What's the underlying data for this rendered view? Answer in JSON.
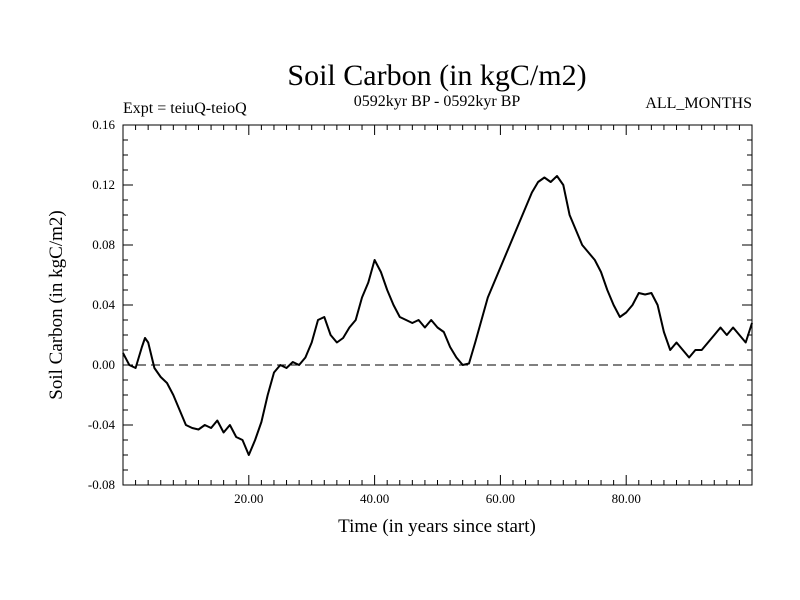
{
  "chart_data": {
    "type": "line",
    "title": "Soil Carbon (in kgC/m2)",
    "subtitle_left": "Expt = teiuQ-teioQ",
    "subtitle_center": "0592kyr BP - 0592kyr BP",
    "subtitle_right": "ALL_MONTHS",
    "xlabel": "Time (in years since start)",
    "ylabel": "Soil Carbon (in kgC/m2)",
    "xlim": [
      0,
      100
    ],
    "ylim": [
      -0.08,
      0.16
    ],
    "xticks": [
      20,
      40,
      60,
      80
    ],
    "xtick_labels": [
      "20.00",
      "40.00",
      "60.00",
      "80.00"
    ],
    "yticks": [
      -0.08,
      -0.04,
      0.0,
      0.04,
      0.08,
      0.12,
      0.16
    ],
    "ytick_labels": [
      "-0.08",
      "-0.04",
      "0.00",
      "0.04",
      "0.08",
      "0.12",
      "0.16"
    ],
    "zero_line": 0.0,
    "series": [
      {
        "name": "Soil Carbon",
        "x": [
          0,
          1,
          2,
          3,
          3.5,
          4,
          5,
          6,
          7,
          8,
          9,
          10,
          11,
          12,
          13,
          14,
          15,
          16,
          17,
          18,
          19,
          20,
          21,
          22,
          23,
          24,
          25,
          26,
          27,
          28,
          29,
          30,
          31,
          32,
          33,
          34,
          35,
          36,
          37,
          38,
          39,
          40,
          41,
          42,
          43,
          44,
          45,
          46,
          47,
          48,
          49,
          50,
          51,
          52,
          53,
          54,
          55,
          56,
          57,
          58,
          59,
          60,
          61,
          62,
          63,
          64,
          65,
          66,
          67,
          68,
          69,
          70,
          71,
          72,
          73,
          74,
          75,
          76,
          77,
          78,
          79,
          80,
          81,
          82,
          83,
          84,
          85,
          86,
          87,
          88,
          89,
          90,
          91,
          92,
          93,
          94,
          95,
          96,
          97,
          98,
          99,
          100
        ],
        "values": [
          0.008,
          0.0,
          -0.002,
          0.012,
          0.018,
          0.015,
          -0.002,
          -0.008,
          -0.012,
          -0.02,
          -0.03,
          -0.04,
          -0.042,
          -0.043,
          -0.04,
          -0.042,
          -0.037,
          -0.045,
          -0.04,
          -0.048,
          -0.05,
          -0.06,
          -0.05,
          -0.038,
          -0.02,
          -0.005,
          0.0,
          -0.002,
          0.002,
          0.0,
          0.005,
          0.015,
          0.03,
          0.032,
          0.02,
          0.015,
          0.018,
          0.025,
          0.03,
          0.045,
          0.055,
          0.07,
          0.062,
          0.05,
          0.04,
          0.032,
          0.03,
          0.028,
          0.03,
          0.025,
          0.03,
          0.025,
          0.022,
          0.012,
          0.005,
          0.0,
          0.001,
          0.015,
          0.03,
          0.045,
          0.055,
          0.065,
          0.075,
          0.085,
          0.095,
          0.105,
          0.115,
          0.122,
          0.125,
          0.122,
          0.126,
          0.12,
          0.1,
          0.09,
          0.08,
          0.075,
          0.07,
          0.062,
          0.05,
          0.04,
          0.032,
          0.035,
          0.04,
          0.048,
          0.047,
          0.048,
          0.04,
          0.022,
          0.01,
          0.015,
          0.01,
          0.005,
          0.01,
          0.01,
          0.015,
          0.02,
          0.025,
          0.02,
          0.025,
          0.02,
          0.015,
          0.028
        ]
      }
    ]
  }
}
